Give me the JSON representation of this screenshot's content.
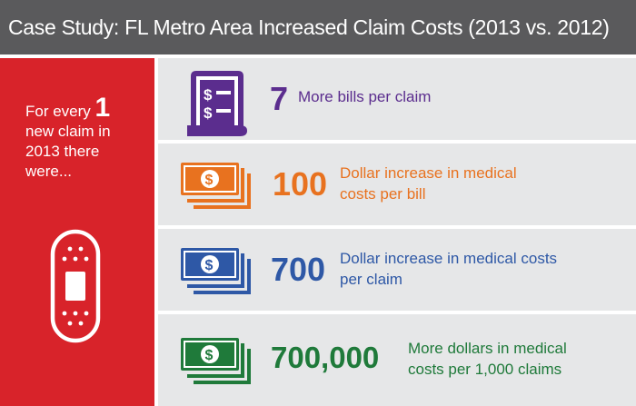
{
  "header": {
    "title": "Case Study: FL Metro Area Increased Claim Costs (2013 vs. 2012)"
  },
  "intro": {
    "pre": "For every ",
    "big_number": "1",
    "line2": "new claim in",
    "line3": "2013 there",
    "line4": "were..."
  },
  "colors": {
    "header_bg": "#5a5a5c",
    "panel_red": "#d8232a",
    "row_bg": "#e6e7e8",
    "purple": "#5b2d8e",
    "orange": "#e8721f",
    "blue": "#2e58a6",
    "green": "#1f7a3a"
  },
  "stats": [
    {
      "number": "7",
      "line1": "More bills per claim",
      "line2": "",
      "icon": "bill-icon",
      "color": "#5b2d8e"
    },
    {
      "number": "100",
      "line1": "Dollar increase in medical",
      "line2": "costs per bill",
      "icon": "money-stack-icon",
      "color": "#e8721f"
    },
    {
      "number": "700",
      "line1": "Dollar increase in medical costs",
      "line2": "per claim",
      "icon": "money-stack-icon",
      "color": "#2e58a6"
    },
    {
      "number": "700,000",
      "line1": "More dollars in medical",
      "line2": "costs per 1,000 claims",
      "icon": "money-stack-icon",
      "color": "#1f7a3a"
    }
  ]
}
